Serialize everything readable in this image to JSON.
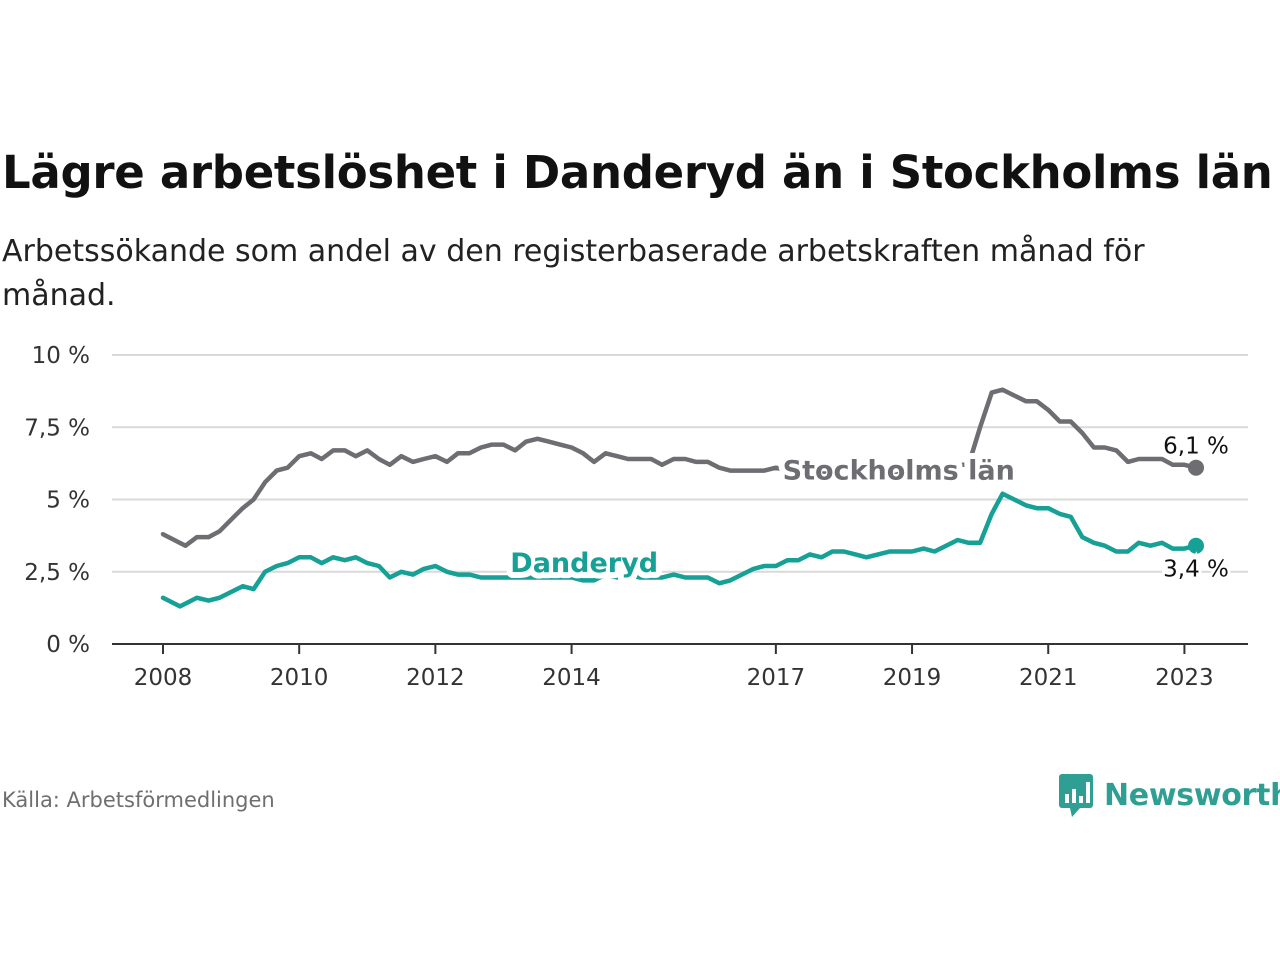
{
  "title": "Lägre arbetslöshet i Danderyd än i Stockholms län",
  "subtitle": "Arbetssökande som andel av den registerbaserade arbetskraften månad för månad.",
  "source": "Källa: Arbetsförmedlingen",
  "brand": {
    "name": "Newsworthy",
    "icon": "newsworthy-logo-icon",
    "color": "#2f9e93"
  },
  "chart_data": {
    "type": "line",
    "ylim": [
      0,
      10
    ],
    "xlim": [
      2008,
      2023.5
    ],
    "yticks": [
      {
        "value": 0,
        "label": "0 %"
      },
      {
        "value": 2.5,
        "label": "2,5 %"
      },
      {
        "value": 5,
        "label": "5 %"
      },
      {
        "value": 7.5,
        "label": "7,5 %"
      },
      {
        "value": 10,
        "label": "10 %"
      }
    ],
    "xticks": [
      {
        "value": 2008,
        "label": "2008"
      },
      {
        "value": 2010,
        "label": "2010"
      },
      {
        "value": 2012,
        "label": "2012"
      },
      {
        "value": 2014,
        "label": "2014"
      },
      {
        "value": 2017,
        "label": "2017"
      },
      {
        "value": 2019,
        "label": "2019"
      },
      {
        "value": 2021,
        "label": "2021"
      },
      {
        "value": 2023,
        "label": "2023"
      }
    ],
    "grid": true,
    "series": [
      {
        "name": "Stockholms län",
        "color": "#6d6d72",
        "end_label": "6,1 %",
        "points": [
          [
            2008.0,
            3.8
          ],
          [
            2008.33,
            3.4
          ],
          [
            2008.5,
            3.7
          ],
          [
            2008.67,
            3.7
          ],
          [
            2008.83,
            3.9
          ],
          [
            2009.0,
            4.3
          ],
          [
            2009.17,
            4.7
          ],
          [
            2009.33,
            5.0
          ],
          [
            2009.5,
            5.6
          ],
          [
            2009.67,
            6.0
          ],
          [
            2009.83,
            6.1
          ],
          [
            2010.0,
            6.5
          ],
          [
            2010.17,
            6.6
          ],
          [
            2010.33,
            6.4
          ],
          [
            2010.5,
            6.7
          ],
          [
            2010.67,
            6.7
          ],
          [
            2010.83,
            6.5
          ],
          [
            2011.0,
            6.7
          ],
          [
            2011.17,
            6.4
          ],
          [
            2011.33,
            6.2
          ],
          [
            2011.5,
            6.5
          ],
          [
            2011.67,
            6.3
          ],
          [
            2011.83,
            6.4
          ],
          [
            2012.0,
            6.5
          ],
          [
            2012.17,
            6.3
          ],
          [
            2012.33,
            6.6
          ],
          [
            2012.5,
            6.6
          ],
          [
            2012.67,
            6.8
          ],
          [
            2012.83,
            6.9
          ],
          [
            2013.0,
            6.9
          ],
          [
            2013.17,
            6.7
          ],
          [
            2013.33,
            7.0
          ],
          [
            2013.5,
            7.1
          ],
          [
            2013.67,
            7.0
          ],
          [
            2013.83,
            6.9
          ],
          [
            2014.0,
            6.8
          ],
          [
            2014.17,
            6.6
          ],
          [
            2014.33,
            6.3
          ],
          [
            2014.5,
            6.6
          ],
          [
            2014.67,
            6.5
          ],
          [
            2014.83,
            6.4
          ],
          [
            2015.0,
            6.4
          ],
          [
            2015.17,
            6.4
          ],
          [
            2015.33,
            6.2
          ],
          [
            2015.5,
            6.4
          ],
          [
            2015.67,
            6.4
          ],
          [
            2015.83,
            6.3
          ],
          [
            2016.0,
            6.3
          ],
          [
            2016.17,
            6.1
          ],
          [
            2016.33,
            6.0
          ],
          [
            2016.5,
            6.0
          ],
          [
            2016.67,
            6.0
          ],
          [
            2016.83,
            6.0
          ],
          [
            2017.0,
            6.1
          ],
          [
            2017.17,
            6.0
          ],
          [
            2017.33,
            6.0
          ],
          [
            2017.5,
            6.0
          ],
          [
            2017.67,
            5.9
          ],
          [
            2017.83,
            5.9
          ],
          [
            2018.0,
            5.9
          ],
          [
            2018.17,
            5.8
          ],
          [
            2018.33,
            5.8
          ],
          [
            2018.5,
            5.8
          ],
          [
            2018.67,
            5.8
          ],
          [
            2018.83,
            5.9
          ],
          [
            2019.0,
            5.9
          ],
          [
            2019.17,
            5.9
          ],
          [
            2019.33,
            6.0
          ],
          [
            2019.5,
            6.0
          ],
          [
            2019.67,
            6.2
          ],
          [
            2019.83,
            6.2
          ],
          [
            2020.0,
            7.5
          ],
          [
            2020.17,
            8.7
          ],
          [
            2020.33,
            8.8
          ],
          [
            2020.5,
            8.6
          ],
          [
            2020.67,
            8.4
          ],
          [
            2020.83,
            8.4
          ],
          [
            2021.0,
            8.1
          ],
          [
            2021.17,
            7.7
          ],
          [
            2021.33,
            7.7
          ],
          [
            2021.5,
            7.3
          ],
          [
            2021.67,
            6.8
          ],
          [
            2021.83,
            6.8
          ],
          [
            2022.0,
            6.7
          ],
          [
            2022.17,
            6.3
          ],
          [
            2022.33,
            6.4
          ],
          [
            2022.5,
            6.4
          ],
          [
            2022.67,
            6.4
          ],
          [
            2022.83,
            6.2
          ],
          [
            2023.0,
            6.2
          ],
          [
            2023.17,
            6.1
          ]
        ]
      },
      {
        "name": "Danderyd",
        "color": "#16a096",
        "end_label": "3,4 %",
        "points": [
          [
            2008.0,
            1.6
          ],
          [
            2008.25,
            1.3
          ],
          [
            2008.5,
            1.6
          ],
          [
            2008.67,
            1.5
          ],
          [
            2008.83,
            1.6
          ],
          [
            2009.0,
            1.8
          ],
          [
            2009.17,
            2.0
          ],
          [
            2009.33,
            1.9
          ],
          [
            2009.5,
            2.5
          ],
          [
            2009.67,
            2.7
          ],
          [
            2009.83,
            2.8
          ],
          [
            2010.0,
            3.0
          ],
          [
            2010.17,
            3.0
          ],
          [
            2010.33,
            2.8
          ],
          [
            2010.5,
            3.0
          ],
          [
            2010.67,
            2.9
          ],
          [
            2010.83,
            3.0
          ],
          [
            2011.0,
            2.8
          ],
          [
            2011.17,
            2.7
          ],
          [
            2011.33,
            2.3
          ],
          [
            2011.5,
            2.5
          ],
          [
            2011.67,
            2.4
          ],
          [
            2011.83,
            2.6
          ],
          [
            2012.0,
            2.7
          ],
          [
            2012.17,
            2.5
          ],
          [
            2012.33,
            2.4
          ],
          [
            2012.5,
            2.4
          ],
          [
            2012.67,
            2.3
          ],
          [
            2012.83,
            2.3
          ],
          [
            2013.0,
            2.3
          ],
          [
            2013.17,
            2.3
          ],
          [
            2013.33,
            2.3
          ],
          [
            2013.5,
            2.3
          ],
          [
            2013.67,
            2.3
          ],
          [
            2013.83,
            2.3
          ],
          [
            2014.0,
            2.3
          ],
          [
            2014.17,
            2.2
          ],
          [
            2014.33,
            2.2
          ],
          [
            2014.5,
            2.4
          ],
          [
            2014.67,
            2.3
          ],
          [
            2014.83,
            2.4
          ],
          [
            2015.0,
            2.3
          ],
          [
            2015.17,
            2.3
          ],
          [
            2015.33,
            2.3
          ],
          [
            2015.5,
            2.4
          ],
          [
            2015.67,
            2.3
          ],
          [
            2015.83,
            2.3
          ],
          [
            2016.0,
            2.3
          ],
          [
            2016.17,
            2.1
          ],
          [
            2016.33,
            2.2
          ],
          [
            2016.5,
            2.4
          ],
          [
            2016.67,
            2.6
          ],
          [
            2016.83,
            2.7
          ],
          [
            2017.0,
            2.7
          ],
          [
            2017.17,
            2.9
          ],
          [
            2017.33,
            2.9
          ],
          [
            2017.5,
            3.1
          ],
          [
            2017.67,
            3.0
          ],
          [
            2017.83,
            3.2
          ],
          [
            2018.0,
            3.2
          ],
          [
            2018.17,
            3.1
          ],
          [
            2018.33,
            3.0
          ],
          [
            2018.5,
            3.1
          ],
          [
            2018.67,
            3.2
          ],
          [
            2018.83,
            3.2
          ],
          [
            2019.0,
            3.2
          ],
          [
            2019.17,
            3.3
          ],
          [
            2019.33,
            3.2
          ],
          [
            2019.5,
            3.4
          ],
          [
            2019.67,
            3.6
          ],
          [
            2019.83,
            3.5
          ],
          [
            2020.0,
            3.5
          ],
          [
            2020.17,
            4.5
          ],
          [
            2020.33,
            5.2
          ],
          [
            2020.5,
            5.0
          ],
          [
            2020.67,
            4.8
          ],
          [
            2020.83,
            4.7
          ],
          [
            2021.0,
            4.7
          ],
          [
            2021.17,
            4.5
          ],
          [
            2021.33,
            4.4
          ],
          [
            2021.5,
            3.7
          ],
          [
            2021.67,
            3.5
          ],
          [
            2021.83,
            3.4
          ],
          [
            2022.0,
            3.2
          ],
          [
            2022.17,
            3.2
          ],
          [
            2022.33,
            3.5
          ],
          [
            2022.5,
            3.4
          ],
          [
            2022.67,
            3.5
          ],
          [
            2022.83,
            3.3
          ],
          [
            2023.0,
            3.3
          ],
          [
            2023.17,
            3.4
          ]
        ]
      }
    ],
    "annotations": [
      {
        "text": "Stockholms län",
        "series": "Stockholms län",
        "x": 2017.1,
        "y": 6.0
      },
      {
        "text": "Danderyd",
        "series": "Danderyd",
        "x": 2013.1,
        "y": 2.8
      }
    ]
  }
}
